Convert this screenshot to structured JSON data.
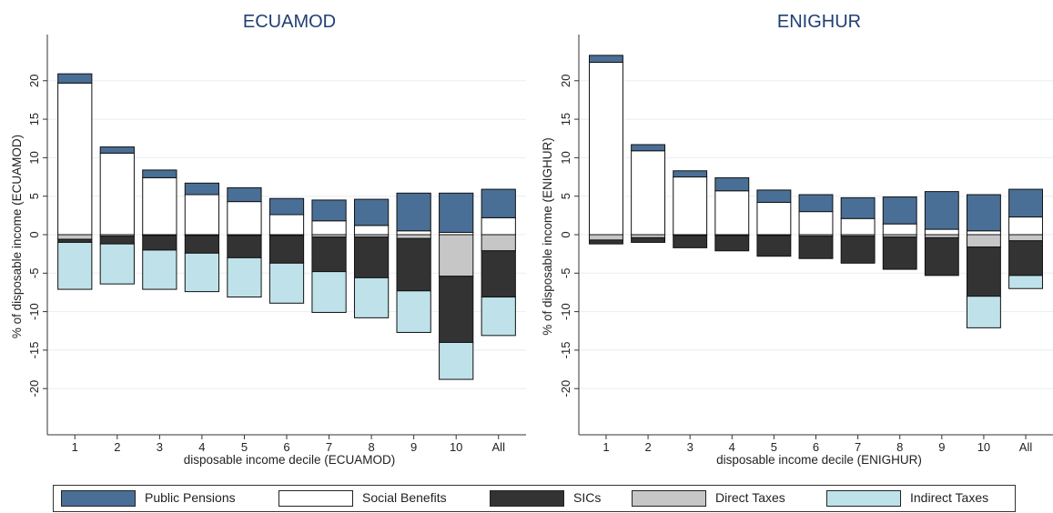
{
  "chart_data": [
    {
      "type": "bar",
      "stacked": true,
      "title": "ECUAMOD",
      "xlabel": "disposable income decile (ECUAMOD)",
      "ylabel": "% of disposable income (ECUAMOD)",
      "categories": [
        "1",
        "2",
        "3",
        "4",
        "5",
        "6",
        "7",
        "8",
        "9",
        "10",
        "All"
      ],
      "yticks": [
        20,
        15,
        10,
        5,
        0,
        -5,
        -10,
        -15,
        -20
      ],
      "ylim": [
        -26,
        26
      ],
      "grid": true,
      "series": [
        {
          "name": "Social Benefits",
          "values": [
            19.7,
            10.6,
            7.4,
            5.2,
            4.3,
            2.6,
            1.8,
            1.2,
            0.5,
            0.3,
            2.2
          ]
        },
        {
          "name": "Public Pensions",
          "values": [
            1.2,
            0.8,
            1.0,
            1.5,
            1.8,
            2.1,
            2.7,
            3.4,
            4.9,
            5.1,
            3.7
          ]
        },
        {
          "name": "Direct Taxes",
          "values": [
            -0.6,
            -0.2,
            -0.1,
            -0.1,
            -0.1,
            -0.1,
            -0.3,
            -0.3,
            -0.5,
            -5.4,
            -2.1
          ]
        },
        {
          "name": "SICs",
          "values": [
            -0.4,
            -1.0,
            -1.9,
            -2.3,
            -2.9,
            -3.6,
            -4.5,
            -5.3,
            -6.8,
            -8.6,
            -6.0
          ]
        },
        {
          "name": "Indirect Taxes",
          "values": [
            -6.1,
            -5.2,
            -5.1,
            -5.0,
            -5.1,
            -5.2,
            -5.3,
            -5.2,
            -5.4,
            -4.8,
            -5.0
          ]
        }
      ]
    },
    {
      "type": "bar",
      "stacked": true,
      "title": "ENIGHUR",
      "xlabel": "disposable income decile (ENIGHUR)",
      "ylabel": "% of disposable income (ENIGHUR)",
      "categories": [
        "1",
        "2",
        "3",
        "4",
        "5",
        "6",
        "7",
        "8",
        "9",
        "10",
        "All"
      ],
      "yticks": [
        20,
        15,
        10,
        5,
        0,
        -5,
        -10,
        -15,
        -20
      ],
      "ylim": [
        -26,
        26
      ],
      "grid": true,
      "series": [
        {
          "name": "Social Benefits",
          "values": [
            22.4,
            10.9,
            7.5,
            5.7,
            4.2,
            3.0,
            2.1,
            1.4,
            0.7,
            0.5,
            2.3
          ]
        },
        {
          "name": "Public Pensions",
          "values": [
            0.9,
            0.8,
            0.8,
            1.7,
            1.6,
            2.2,
            2.7,
            3.5,
            4.9,
            4.7,
            3.6
          ]
        },
        {
          "name": "Direct Taxes",
          "values": [
            -0.7,
            -0.4,
            -0.1,
            -0.1,
            -0.1,
            -0.2,
            -0.2,
            -0.3,
            -0.4,
            -1.6,
            -0.8
          ]
        },
        {
          "name": "SICs",
          "values": [
            -0.5,
            -0.6,
            -1.6,
            -2.0,
            -2.7,
            -2.9,
            -3.5,
            -4.2,
            -4.9,
            -6.4,
            -4.5
          ]
        },
        {
          "name": "Indirect Taxes",
          "values": [
            0,
            0,
            0,
            0,
            0,
            0,
            0,
            0,
            0,
            -4.1,
            -1.7
          ]
        }
      ]
    }
  ],
  "legend": {
    "placement": "bottom",
    "items": [
      {
        "label": "Public Pensions",
        "color": "#4a6f96"
      },
      {
        "label": "Social Benefits",
        "color": "#ffffff"
      },
      {
        "label": "SICs",
        "color": "#333333"
      },
      {
        "label": "Direct Taxes",
        "color": "#c6c6c6"
      },
      {
        "label": "Indirect Taxes",
        "color": "#bfe2ea"
      }
    ]
  },
  "colors": {
    "Public Pensions": "#4a6f96",
    "Social Benefits": "#ffffff",
    "SICs": "#333333",
    "Direct Taxes": "#c6c6c6",
    "Indirect Taxes": "#bfe2ea"
  }
}
